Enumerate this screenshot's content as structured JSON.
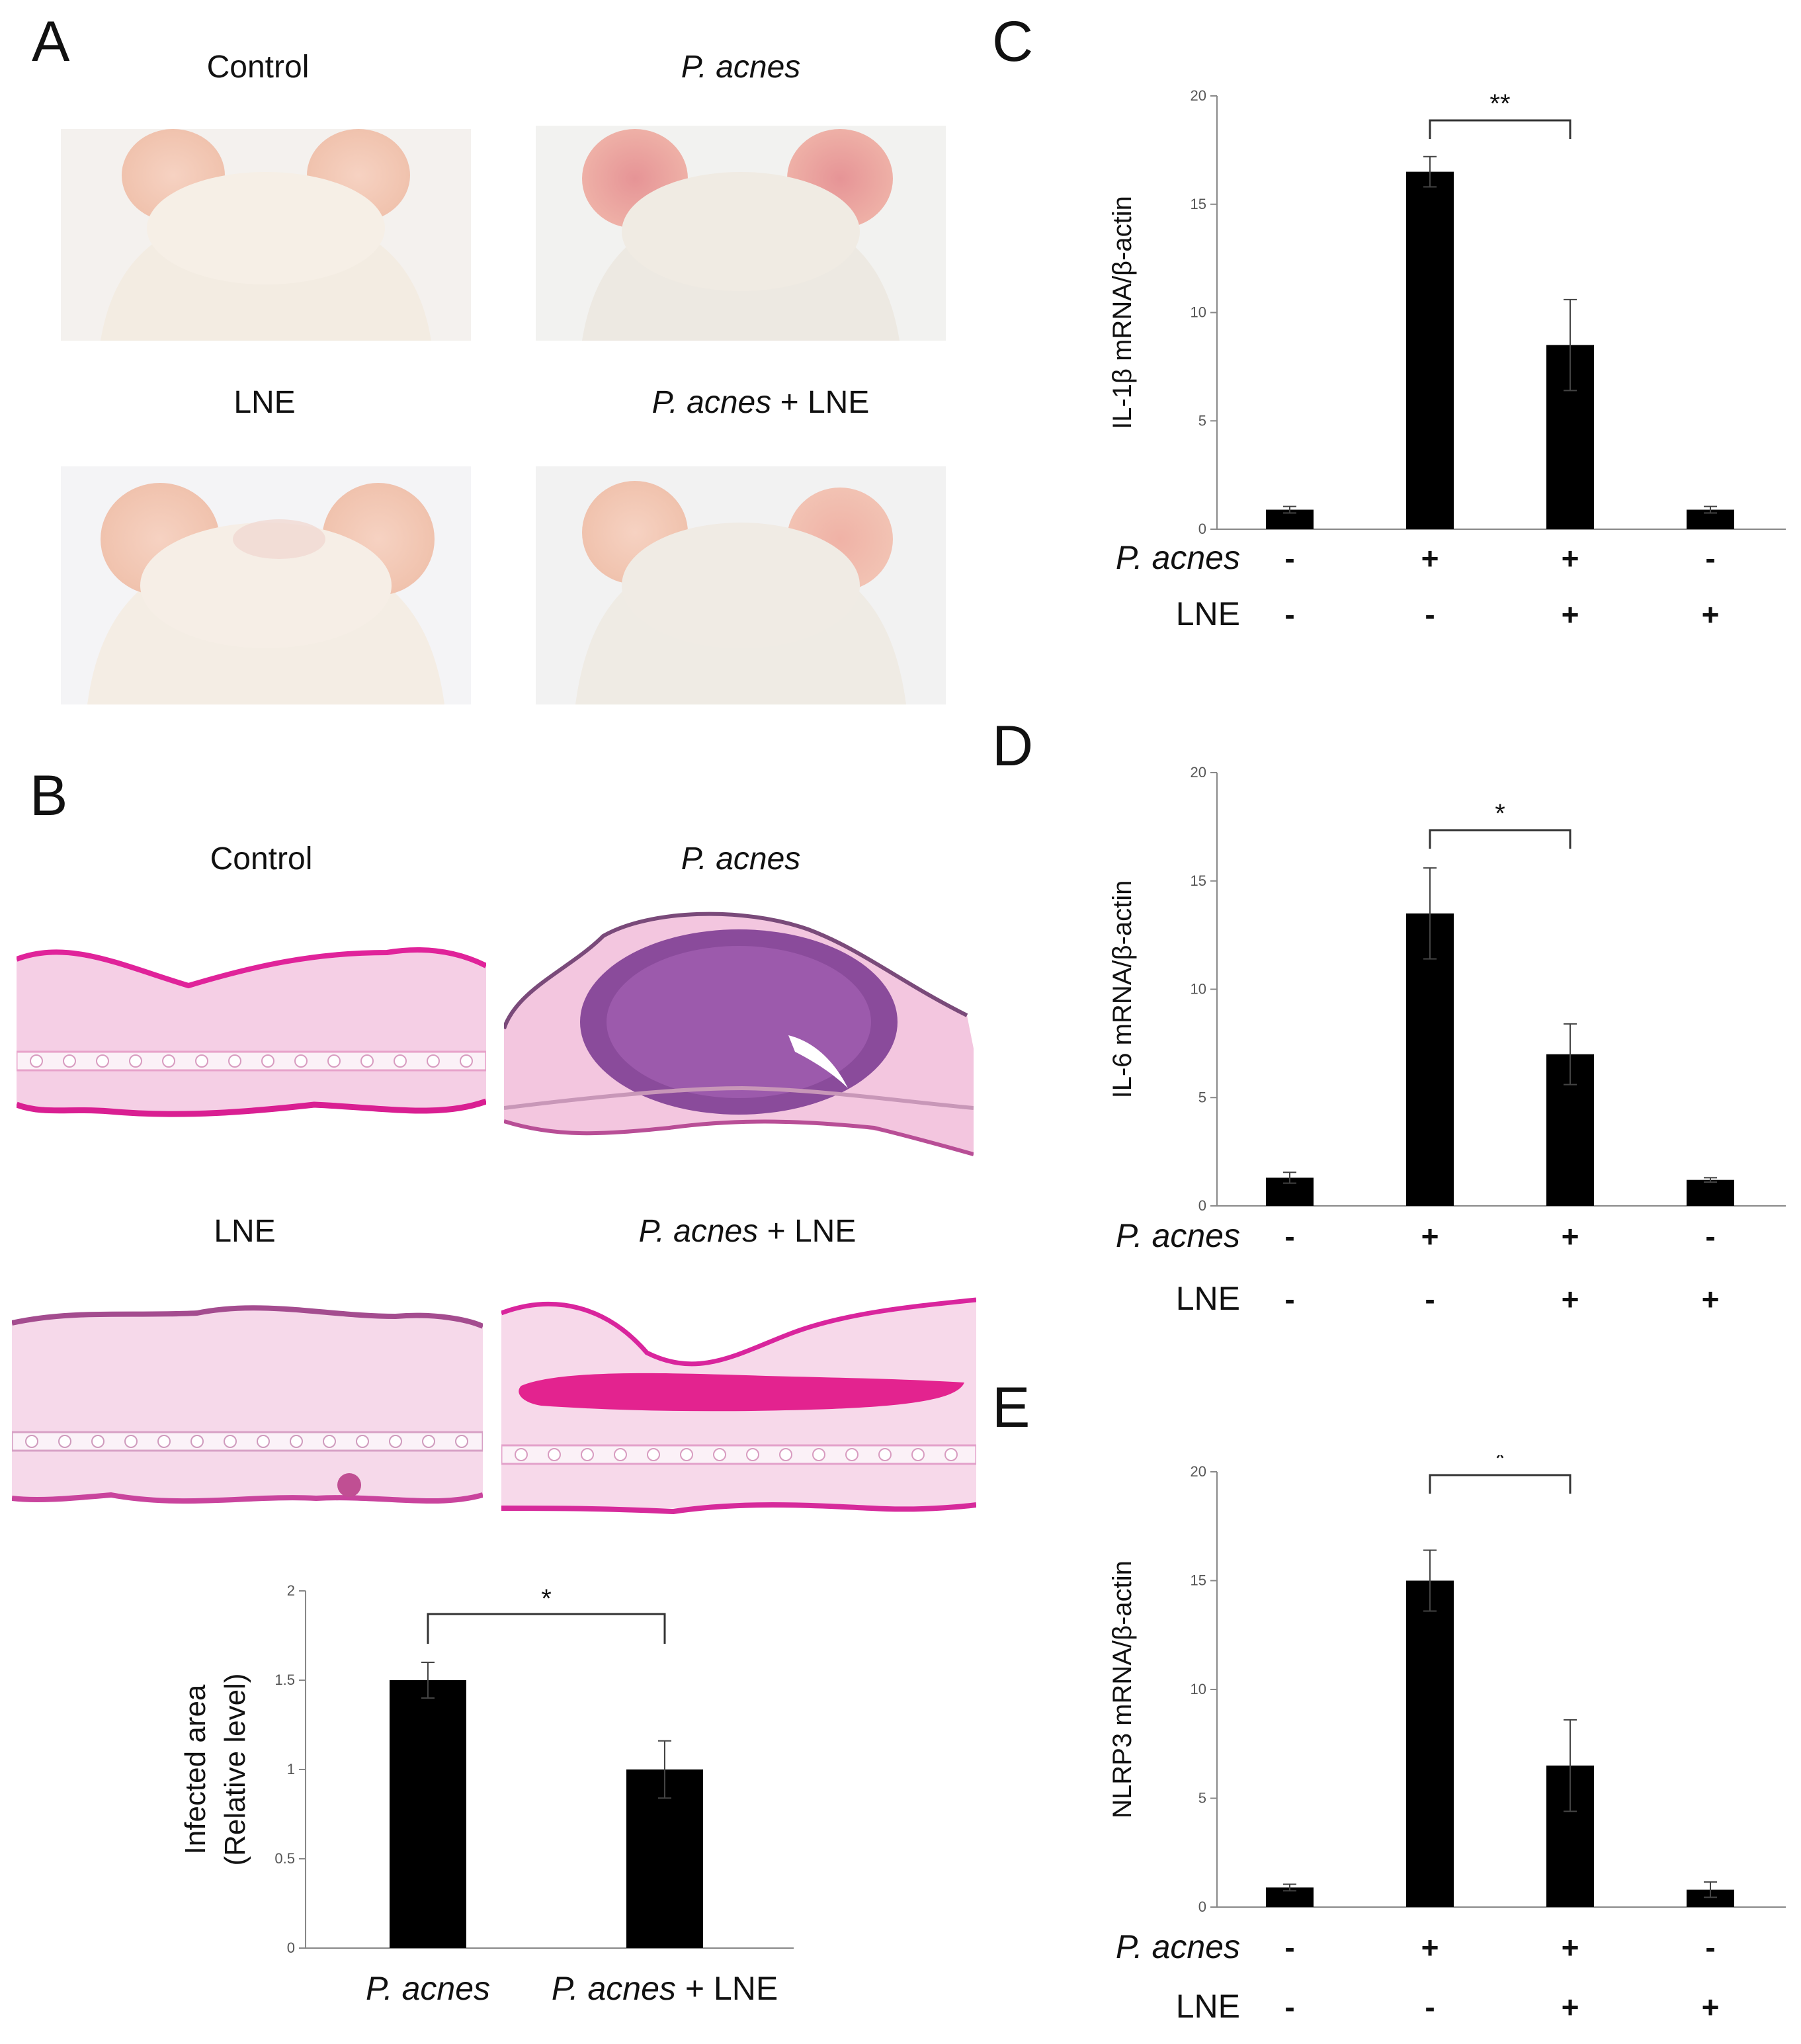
{
  "panels": {
    "A": {
      "letter": "A",
      "captions": {
        "control": "Control",
        "pacnes": "P. acnes",
        "lne": "LNE",
        "pacnes_lne_italic": "P. acnes",
        "pacnes_lne_rest": " + LNE"
      }
    },
    "B": {
      "letter": "B",
      "captions": {
        "control": "Control",
        "pacnes": "P. acnes",
        "lne": "LNE",
        "pacnes_lne_italic": "P. acnes",
        "pacnes_lne_rest": " + LNE"
      }
    },
    "C": {
      "letter": "C"
    },
    "D": {
      "letter": "D"
    },
    "E": {
      "letter": "E"
    }
  },
  "chart_data": [
    {
      "id": "B-bar",
      "type": "bar",
      "ylabel": [
        "Infected area",
        "(Relative level)"
      ],
      "ylim": [
        0,
        2
      ],
      "yticks": [
        "0",
        "0.5",
        "1",
        "1.5",
        "2"
      ],
      "categories": [
        "P. acnes",
        "P. acnes + LNE"
      ],
      "category_italic": [
        "P. acnes",
        "P. acnes"
      ],
      "category_rest": [
        "",
        " + LNE"
      ],
      "values": [
        1.5,
        1.0
      ],
      "errors": [
        0.1,
        0.16
      ],
      "significance": {
        "from": 0,
        "to": 1,
        "label": "*"
      },
      "bar_color": "#000000"
    },
    {
      "id": "C",
      "type": "bar",
      "ylabel": "IL-1β mRNA/β-actin",
      "ylim": [
        0,
        20
      ],
      "yticks": [
        "0",
        "5",
        "10",
        "15",
        "20"
      ],
      "values": [
        0.9,
        16.5,
        8.5,
        0.9
      ],
      "errors": [
        0.15,
        0.7,
        2.1,
        0.15
      ],
      "treatments": {
        "pacnes_label": "P. acnes",
        "lne_label": "LNE",
        "pacnes": [
          "-",
          "+",
          "+",
          "-"
        ],
        "lne": [
          "-",
          "-",
          "+",
          "+"
        ]
      },
      "significance": {
        "from": 1,
        "to": 2,
        "label": "**"
      },
      "bar_color": "#000000"
    },
    {
      "id": "D",
      "type": "bar",
      "ylabel": "IL-6 mRNA/β-actin",
      "ylim": [
        0,
        20
      ],
      "yticks": [
        "0",
        "5",
        "10",
        "15",
        "20"
      ],
      "values": [
        1.3,
        13.5,
        7.0,
        1.2
      ],
      "errors": [
        0.25,
        2.1,
        1.4,
        0.1
      ],
      "treatments": {
        "pacnes_label": "P. acnes",
        "lne_label": "LNE",
        "pacnes": [
          "-",
          "+",
          "+",
          "-"
        ],
        "lne": [
          "-",
          "-",
          "+",
          "+"
        ]
      },
      "significance": {
        "from": 1,
        "to": 2,
        "label": "*"
      },
      "bar_color": "#000000"
    },
    {
      "id": "E",
      "type": "bar",
      "ylabel": "NLRP3 mRNA/β-actin",
      "ylim": [
        0,
        20
      ],
      "yticks": [
        "0",
        "5",
        "10",
        "15",
        "20"
      ],
      "values": [
        0.9,
        15.0,
        6.5,
        0.8
      ],
      "errors": [
        0.15,
        1.4,
        2.1,
        0.35
      ],
      "treatments": {
        "pacnes_label": "P. acnes",
        "lne_label": "LNE",
        "pacnes": [
          "-",
          "+",
          "+",
          "-"
        ],
        "lne": [
          "-",
          "-",
          "+",
          "+"
        ]
      },
      "significance": {
        "from": 1,
        "to": 2,
        "label": "*"
      },
      "bar_color": "#000000"
    }
  ]
}
